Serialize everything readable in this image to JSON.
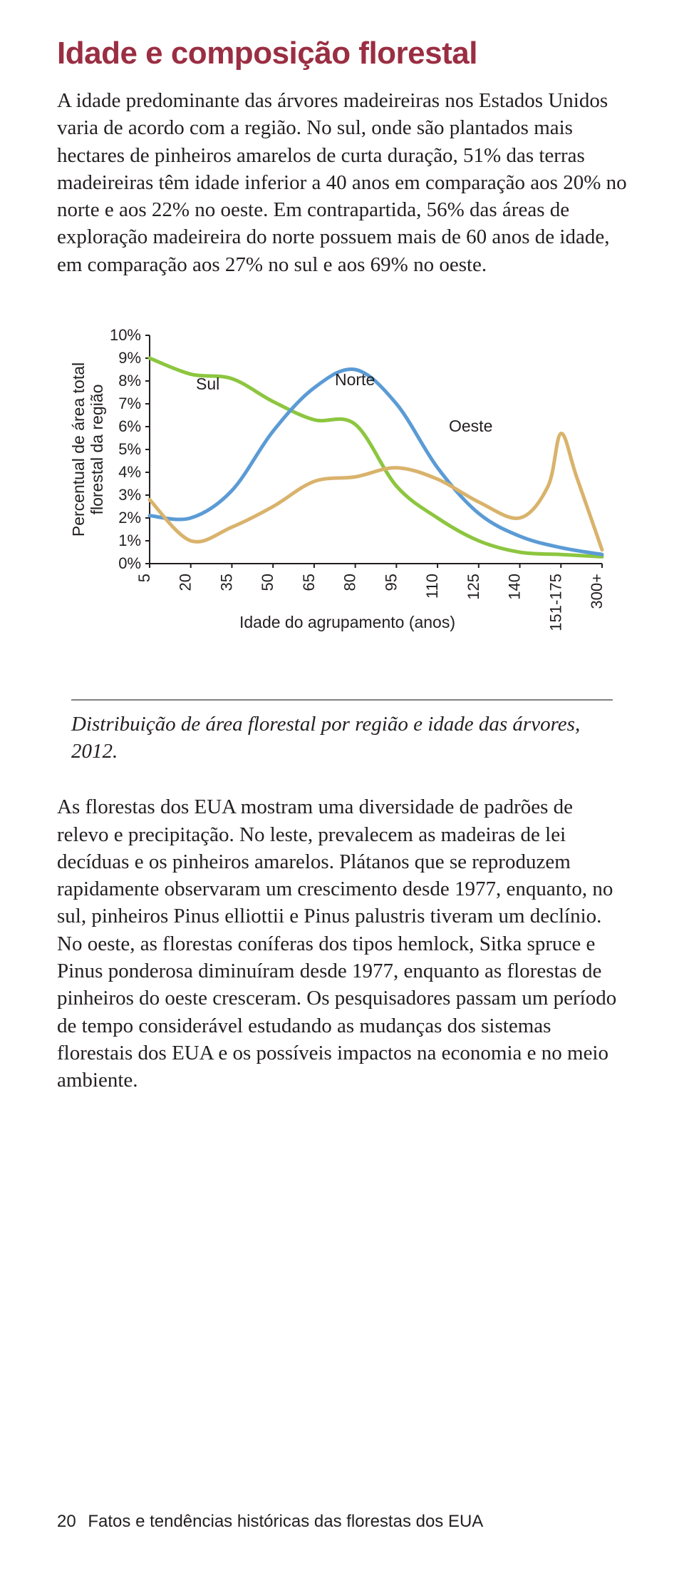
{
  "title": "Idade e composição florestal",
  "intro": "A idade predominante das árvores madeireiras nos Estados Unidos varia de acordo com a região. No sul, onde são plantados mais hectares de pinheiros amarelos de curta duração, 51% das terras madeireiras têm idade inferior a 40 anos em comparação aos 20% no norte e aos 22% no oeste. Em contrapartida, 56% das áreas de exploração madeireira do norte possuem mais de 60 anos de idade, em comparação aos 27% no sul e aos 69% no oeste.",
  "caption": "Distribuição de área florestal por região e idade das árvores, 2012.",
  "body2": "As florestas dos EUA mostram uma diversidade de padrões de relevo e precipitação. No leste, prevalecem as madeiras de lei decíduas e os pinheiros amarelos. Plátanos que se reproduzem rapidamente observaram um crescimento desde 1977, enquanto, no sul, pinheiros Pinus elliottii e Pinus palustris tiveram um declínio. No oeste, as florestas coníferas dos tipos hemlock, Sitka spruce e Pinus ponderosa diminuíram desde 1977, enquanto as florestas de pinheiros do oeste cresceram. Os pesquisadores passam um período de tempo considerável estudando as mudanças dos sistemas florestais dos EUA e os possíveis impactos na economia e no meio ambiente.",
  "footer": {
    "page": "20",
    "text": "Fatos e tendências históricas das florestas dos EUA"
  },
  "chart": {
    "type": "line",
    "ylabel": "Percentual de área total\nflorestal da região",
    "xlabel": "Idade do agrupamento (anos)",
    "yticks": [
      "0%",
      "1%",
      "2%",
      "3%",
      "4%",
      "5%",
      "6%",
      "7%",
      "8%",
      "9%",
      "10%"
    ],
    "ylim": [
      0,
      10
    ],
    "xticks": [
      "5",
      "20",
      "35",
      "50",
      "65",
      "80",
      "95",
      "110",
      "125",
      "140",
      "151-175",
      "300+"
    ],
    "series": {
      "sul": {
        "label": "Sul",
        "color": "#8cc63f",
        "values": [
          9.0,
          8.3,
          8.1,
          7.1,
          6.3,
          6.1,
          3.4,
          2.0,
          1.0,
          0.5,
          0.4,
          0.3
        ]
      },
      "norte": {
        "label": "Norte",
        "color": "#5b9bd5",
        "values": [
          2.1,
          2.0,
          3.2,
          5.8,
          7.7,
          8.5,
          7.0,
          4.2,
          2.2,
          1.2,
          0.7,
          0.4
        ]
      },
      "oeste": {
        "label": "Oeste",
        "color": "#d9b36c",
        "values": [
          2.8,
          1.0,
          1.6,
          2.5,
          3.6,
          3.8,
          4.2,
          3.7,
          2.7,
          2.0,
          5.7,
          0.6
        ]
      }
    },
    "legend_positions": {
      "sul": [
        175,
        96
      ],
      "norte": [
        370,
        90
      ],
      "oeste": [
        530,
        155
      ]
    },
    "label_fontsize": 23,
    "tick_fontsize": 22,
    "axis_color": "#231f20",
    "line_width": 5
  }
}
